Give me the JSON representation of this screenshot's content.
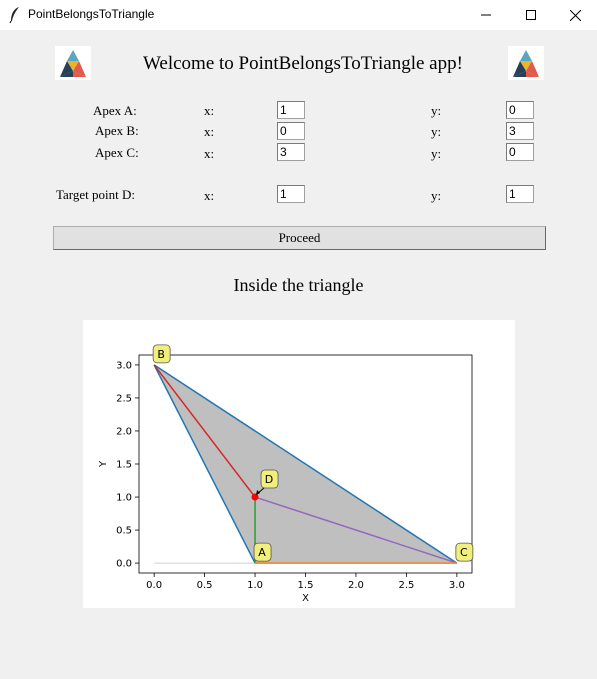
{
  "window": {
    "title": "PointBelongsToTriangle",
    "icons": [
      "feather-icon",
      "minimize-icon",
      "maximize-icon",
      "close-icon"
    ]
  },
  "header": {
    "welcome": "Welcome to PointBelongsToTriangle app!",
    "logo_colors": [
      "#3f7e97",
      "#e9b52b",
      "#27405a",
      "#e05a4e"
    ]
  },
  "form": {
    "x_label": "x:",
    "y_label": "y:",
    "rows": [
      {
        "label": "Apex A:",
        "x": "1",
        "y": "0"
      },
      {
        "label": "Apex B:",
        "x": "0",
        "y": "3"
      },
      {
        "label": "Apex C:",
        "x": "3",
        "y": "0"
      },
      {
        "label": "Target point D:",
        "x": "1",
        "y": "1"
      }
    ],
    "proceed_label": "Proceed"
  },
  "result_text": "Inside the triangle",
  "chart_data": {
    "type": "line",
    "xlabel": "X",
    "ylabel": "Y",
    "xlim": [
      -0.15,
      3.15
    ],
    "ylim": [
      -0.15,
      3.15
    ],
    "xticks": [
      "0.0",
      "0.5",
      "1.0",
      "1.5",
      "2.0",
      "2.5",
      "3.0"
    ],
    "yticks": [
      "0.0",
      "0.5",
      "1.0",
      "1.5",
      "2.0",
      "2.5",
      "3.0"
    ],
    "triangle": {
      "A": [
        1,
        0
      ],
      "B": [
        0,
        3
      ],
      "C": [
        3,
        0
      ],
      "fill": "#bfbfbf",
      "edge_color": "#1f77b4"
    },
    "point_D": [
      1,
      1
    ],
    "segments": [
      {
        "from": [
          1,
          1
        ],
        "to": [
          0,
          3
        ],
        "color": "#d62728"
      },
      {
        "from": [
          1,
          1
        ],
        "to": [
          1,
          0
        ],
        "color": "#2ca02c"
      },
      {
        "from": [
          1,
          1
        ],
        "to": [
          3,
          0
        ],
        "color": "#9467bd"
      },
      {
        "from": [
          1,
          0
        ],
        "to": [
          3,
          0
        ],
        "color": "#ff7f0e"
      }
    ],
    "annotations": [
      {
        "text": "A",
        "at": [
          1,
          0
        ]
      },
      {
        "text": "B",
        "at": [
          0,
          3
        ]
      },
      {
        "text": "C",
        "at": [
          3,
          0
        ]
      },
      {
        "text": "D",
        "at": [
          1,
          1
        ]
      }
    ],
    "grid": false
  }
}
